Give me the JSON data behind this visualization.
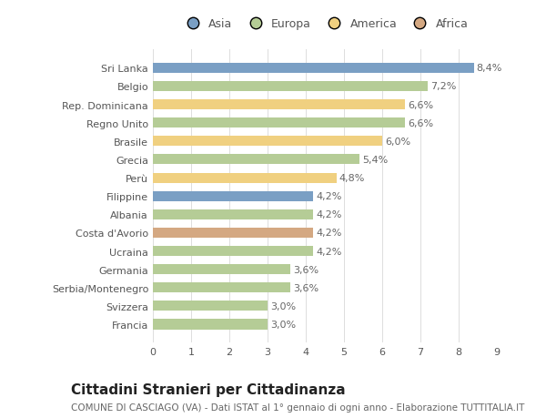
{
  "categories": [
    "Francia",
    "Svizzera",
    "Serbia/Montenegro",
    "Germania",
    "Ucraina",
    "Costa d'Avorio",
    "Albania",
    "Filippine",
    "Perù",
    "Grecia",
    "Brasile",
    "Regno Unito",
    "Rep. Dominicana",
    "Belgio",
    "Sri Lanka"
  ],
  "values": [
    3.0,
    3.0,
    3.6,
    3.6,
    4.2,
    4.2,
    4.2,
    4.2,
    4.8,
    5.4,
    6.0,
    6.6,
    6.6,
    7.2,
    8.4
  ],
  "colors": [
    "#b5cc96",
    "#b5cc96",
    "#b5cc96",
    "#b5cc96",
    "#b5cc96",
    "#d4a882",
    "#b5cc96",
    "#7a9fc4",
    "#f0d080",
    "#b5cc96",
    "#f0d080",
    "#b5cc96",
    "#f0d080",
    "#b5cc96",
    "#7a9fc4"
  ],
  "labels": [
    "3,0%",
    "3,0%",
    "3,6%",
    "3,6%",
    "4,2%",
    "4,2%",
    "4,2%",
    "4,2%",
    "4,8%",
    "5,4%",
    "6,0%",
    "6,6%",
    "6,6%",
    "7,2%",
    "8,4%"
  ],
  "xlim": [
    0,
    9
  ],
  "xticks": [
    0,
    1,
    2,
    3,
    4,
    5,
    6,
    7,
    8,
    9
  ],
  "title": "Cittadini Stranieri per Cittadinanza",
  "subtitle": "COMUNE DI CASCIAGO (VA) - Dati ISTAT al 1° gennaio di ogni anno - Elaborazione TUTTITALIA.IT",
  "legend_labels": [
    "Asia",
    "Europa",
    "America",
    "Africa"
  ],
  "legend_colors": [
    "#7a9fc4",
    "#b5cc96",
    "#f0d080",
    "#d4a882"
  ],
  "bg_color": "#ffffff",
  "bar_height": 0.55,
  "label_fontsize": 8,
  "tick_fontsize": 8,
  "title_fontsize": 11,
  "subtitle_fontsize": 7.5
}
